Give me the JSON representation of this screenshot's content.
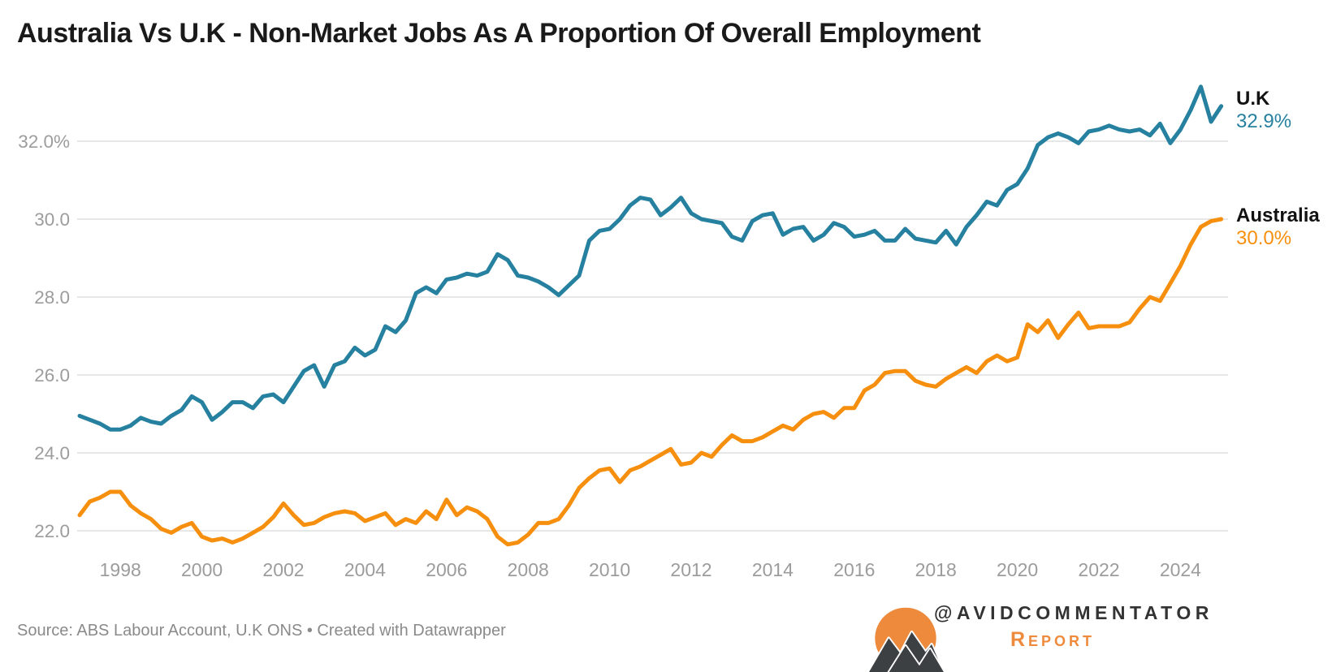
{
  "title": "Australia Vs U.K - Non-Market Jobs As A Proportion Of Overall Employment",
  "colors": {
    "uk_line": "#26809f",
    "australia_line": "#f78f0e",
    "grid": "#e7e7e7",
    "tick_label": "#9c9c9c",
    "logo_orange": "#ee8a3c",
    "logo_dark": "#3c4043"
  },
  "chart_data": {
    "type": "line",
    "title": "Australia Vs U.K - Non-Market Jobs As A Proportion Of Overall Employment",
    "x_start": 1997.0,
    "points_per_year": 4,
    "xlim": [
      1997.0,
      2025.3
    ],
    "ylim": [
      21.4,
      33.75
    ],
    "grid": "horizontal",
    "legend_position": "direct-right",
    "x_axis": {
      "ticks": [
        "1998",
        "2000",
        "2002",
        "2004",
        "2006",
        "2008",
        "2010",
        "2012",
        "2014",
        "2016",
        "2018",
        "2020",
        "2022",
        "2024"
      ]
    },
    "y_axis": {
      "ticks": [
        {
          "label": "32.0%",
          "value": 32.0
        },
        {
          "label": "30.0",
          "value": 30.0
        },
        {
          "label": "28.0",
          "value": 28.0
        },
        {
          "label": "26.0",
          "value": 26.0
        },
        {
          "label": "24.0",
          "value": 24.0
        },
        {
          "label": "22.0",
          "value": 22.0
        }
      ]
    },
    "series": [
      {
        "name": "U.K",
        "end_label": "32.9%",
        "color": "#26809f",
        "values": [
          24.95,
          24.85,
          24.75,
          24.6,
          24.6,
          24.7,
          24.9,
          24.8,
          24.75,
          24.95,
          25.1,
          25.45,
          25.3,
          24.85,
          25.05,
          25.3,
          25.3,
          25.15,
          25.45,
          25.5,
          25.3,
          25.7,
          26.1,
          26.25,
          25.7,
          26.25,
          26.35,
          26.7,
          26.5,
          26.65,
          27.25,
          27.1,
          27.4,
          28.1,
          28.25,
          28.1,
          28.45,
          28.5,
          28.6,
          28.55,
          28.65,
          29.1,
          28.95,
          28.55,
          28.5,
          28.4,
          28.25,
          28.05,
          28.3,
          28.55,
          29.45,
          29.7,
          29.75,
          30.0,
          30.35,
          30.55,
          30.5,
          30.1,
          30.3,
          30.55,
          30.15,
          30.0,
          29.95,
          29.9,
          29.55,
          29.45,
          29.95,
          30.1,
          30.15,
          29.6,
          29.75,
          29.8,
          29.45,
          29.6,
          29.9,
          29.8,
          29.55,
          29.6,
          29.7,
          29.45,
          29.45,
          29.75,
          29.5,
          29.45,
          29.4,
          29.7,
          29.35,
          29.8,
          30.1,
          30.45,
          30.35,
          30.75,
          30.9,
          31.3,
          31.9,
          32.1,
          32.2,
          32.1,
          31.95,
          32.25,
          32.3,
          32.4,
          32.3,
          32.25,
          32.3,
          32.15,
          32.45,
          31.95,
          32.3,
          32.8,
          33.4,
          32.5,
          32.9
        ]
      },
      {
        "name": "Australia",
        "end_label": "30.0%",
        "color": "#f78f0e",
        "values": [
          22.4,
          22.75,
          22.85,
          23.0,
          23.0,
          22.65,
          22.45,
          22.3,
          22.05,
          21.95,
          22.1,
          22.2,
          21.85,
          21.75,
          21.8,
          21.7,
          21.8,
          21.95,
          22.1,
          22.35,
          22.7,
          22.4,
          22.15,
          22.2,
          22.35,
          22.45,
          22.5,
          22.45,
          22.25,
          22.35,
          22.45,
          22.15,
          22.3,
          22.2,
          22.5,
          22.3,
          22.8,
          22.4,
          22.6,
          22.5,
          22.3,
          21.85,
          21.65,
          21.7,
          21.9,
          22.2,
          22.2,
          22.3,
          22.65,
          23.1,
          23.35,
          23.55,
          23.6,
          23.25,
          23.55,
          23.65,
          23.8,
          23.95,
          24.1,
          23.7,
          23.75,
          24.0,
          23.9,
          24.2,
          24.45,
          24.3,
          24.3,
          24.4,
          24.55,
          24.7,
          24.6,
          24.85,
          25.0,
          25.05,
          24.9,
          25.15,
          25.15,
          25.6,
          25.75,
          26.05,
          26.1,
          26.1,
          25.85,
          25.75,
          25.7,
          25.9,
          26.05,
          26.2,
          26.05,
          26.35,
          26.5,
          26.35,
          26.45,
          27.3,
          27.1,
          27.4,
          26.95,
          27.3,
          27.6,
          27.2,
          27.25,
          27.25,
          27.25,
          27.35,
          27.7,
          28.0,
          27.9,
          28.35,
          28.8,
          29.35,
          29.8,
          29.95,
          30.0
        ]
      }
    ]
  },
  "footer": {
    "source": "Source: ABS Labour Account, U.K ONS • Created with Datawrapper",
    "brand_handle": "@AVIDCOMMENTATOR",
    "brand_sub": "Report"
  }
}
